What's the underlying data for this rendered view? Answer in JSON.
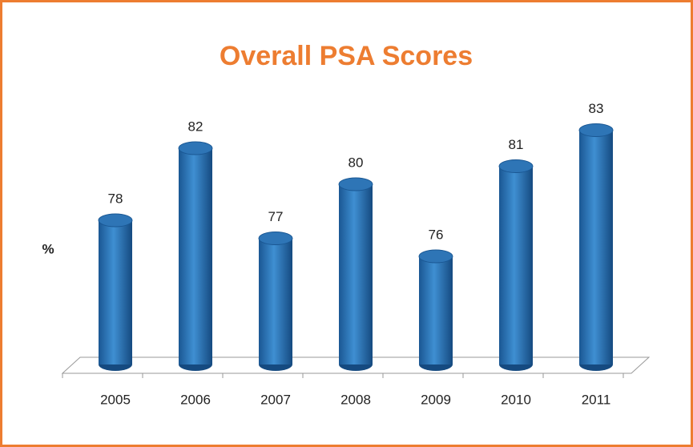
{
  "chart_data": {
    "type": "bar",
    "title": "Overall PSA Scores",
    "y_label": "%",
    "categories": [
      "2005",
      "2006",
      "2007",
      "2008",
      "2009",
      "2010",
      "2011"
    ],
    "values": [
      78,
      82,
      77,
      80,
      76,
      81,
      83
    ],
    "color": "#2e75b6",
    "ylim": [
      70,
      84
    ],
    "grid": false
  }
}
